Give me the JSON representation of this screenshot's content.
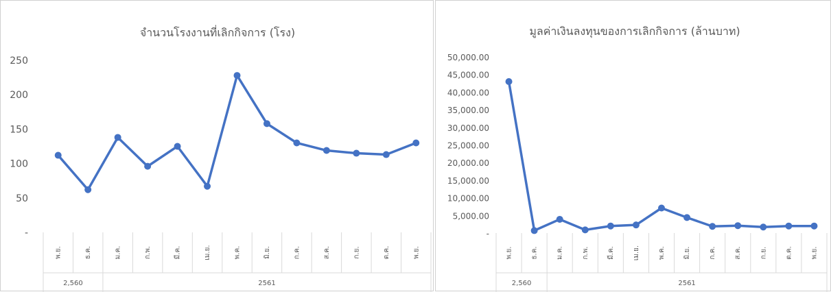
{
  "chart_data": [
    {
      "type": "line",
      "title": "จำนวนโรงงานที่เลิกกิจการ (โรง)",
      "categories": [
        "พ.ย.",
        "ธ.ค.",
        "ม.ค.",
        "ก.พ.",
        "มี.ค.",
        "เม.ย.",
        "พ.ค.",
        "มิ.ย.",
        "ก.ค.",
        "ส.ค.",
        "ก.ย.",
        "ต.ค.",
        "พ.ย."
      ],
      "groups": [
        {
          "label": "2,560",
          "span": 2
        },
        {
          "label": "2561",
          "span": 11
        }
      ],
      "values": [
        112,
        62,
        138,
        96,
        125,
        67,
        228,
        158,
        130,
        119,
        115,
        113,
        130
      ],
      "ylim": [
        0,
        250
      ],
      "yticks": [
        0,
        50,
        100,
        150,
        200,
        250
      ],
      "ytick_labels": [
        "-",
        "50",
        "100",
        "150",
        "200",
        "250"
      ],
      "color": "#4472c4",
      "grid": false
    },
    {
      "type": "line",
      "title": "มูลค่าเงินลงทุนของการเลิกกิจการ (ล้านบาท)",
      "categories": [
        "พ.ย.",
        "ธ.ค.",
        "ม.ค.",
        "ก.พ.",
        "มี.ค.",
        "เม.ย.",
        "พ.ค.",
        "มิ.ย.",
        "ก.ค.",
        "ส.ค.",
        "ก.ย.",
        "ต.ค.",
        "พ.ย."
      ],
      "groups": [
        {
          "label": "2,560",
          "span": 2
        },
        {
          "label": "2561",
          "span": 11
        }
      ],
      "values": [
        43000,
        700,
        3900,
        900,
        2000,
        2300,
        7100,
        4400,
        1900,
        2100,
        1700,
        2000,
        2000
      ],
      "ylim": [
        0,
        50000
      ],
      "yticks": [
        0,
        5000,
        10000,
        15000,
        20000,
        25000,
        30000,
        35000,
        40000,
        45000,
        50000
      ],
      "ytick_labels": [
        "-",
        "5,000.00",
        "10,000.00",
        "15,000.00",
        "20,000.00",
        "25,000.00",
        "30,000.00",
        "35,000.00",
        "40,000.00",
        "45,000.00",
        "50,000.00"
      ],
      "color": "#4472c4",
      "grid": false
    }
  ]
}
